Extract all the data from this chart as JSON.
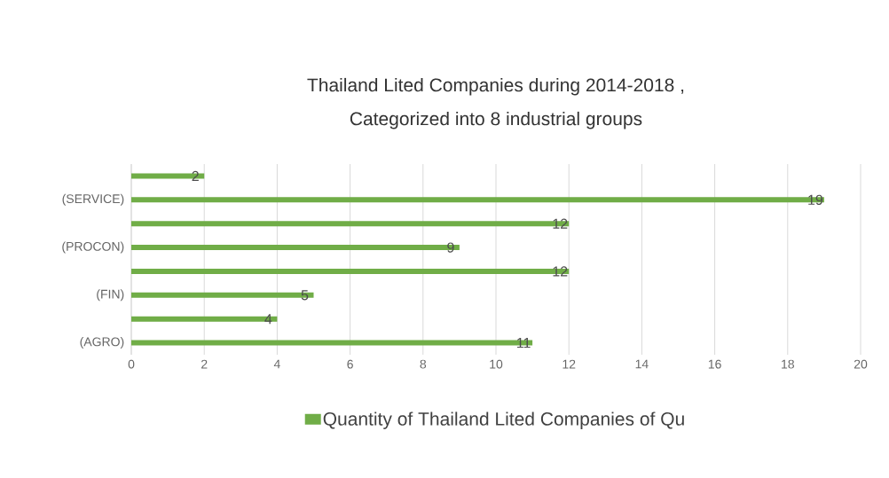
{
  "chart_data": {
    "type": "bar",
    "orientation": "horizontal",
    "title": "Thailand Lited Companies during 2014-2018 ,",
    "subtitle": "Categorized into 8 industrial groups",
    "categories": [
      null,
      "(SERVICE)",
      null,
      "(PROCON)",
      null,
      "(FIN)",
      null,
      "(AGRO)"
    ],
    "series": [
      {
        "name": "Quantity of Thailand Lited Companies of Qu",
        "color": "#70ad47",
        "values": [
          2,
          19,
          12,
          9,
          12,
          5,
          4,
          11
        ]
      }
    ],
    "xlim": [
      0,
      20
    ],
    "xticks": [
      0,
      2,
      4,
      6,
      8,
      10,
      12,
      14,
      16,
      18,
      20
    ],
    "grid": "x",
    "legend": "bottom",
    "data_labels": true
  }
}
